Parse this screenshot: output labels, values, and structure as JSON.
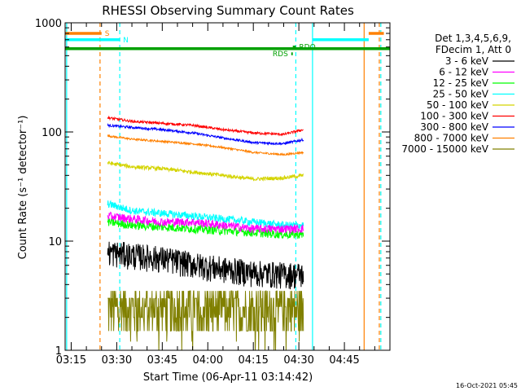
{
  "chart_data": {
    "type": "line",
    "title": "RHESSI Observing Summary Count Rates",
    "xlabel": "Start Time (06-Apr-11 03:14:42)",
    "ylabel": "Count Rate (s⁻¹ detector⁻¹)",
    "x_ticks": [
      "03:15",
      "03:30",
      "03:45",
      "04:00",
      "04:15",
      "04:30",
      "04:45"
    ],
    "x_tick_minutes": [
      15,
      30,
      45,
      60,
      75,
      90,
      105
    ],
    "xlim_minutes": [
      13,
      120
    ],
    "y_scale": "log",
    "ylim": [
      1,
      1000
    ],
    "y_ticks": [
      "1",
      "10",
      "100",
      "1000"
    ],
    "y_tick_values": [
      1,
      10,
      100,
      1000
    ],
    "timestamp": "16-Oct-2021 05:45",
    "legend": {
      "header": [
        "Det 1,3,4,5,6,9,",
        "FDecim 1, Att 0"
      ],
      "placement": "right-outside"
    },
    "series": [
      {
        "name": "3 - 6 keV",
        "color": "#000000",
        "noise": 0.28,
        "x": [
          27,
          35,
          45,
          55,
          65,
          75,
          85,
          91.5
        ],
        "y": [
          8,
          7.5,
          7,
          6.2,
          5.6,
          5.2,
          5,
          5
        ]
      },
      {
        "name": "6 - 12 keV",
        "color": "#ff00ff",
        "noise": 0.09,
        "x": [
          27,
          35,
          45,
          55,
          65,
          75,
          85,
          91.5
        ],
        "y": [
          17,
          16,
          15,
          15,
          14,
          13,
          13,
          13
        ]
      },
      {
        "name": "12 - 25 keV",
        "color": "#00ff00",
        "noise": 0.09,
        "x": [
          27,
          35,
          45,
          55,
          65,
          75,
          85,
          91.5
        ],
        "y": [
          15,
          14,
          13.5,
          13,
          12.5,
          12,
          11.5,
          11.5
        ]
      },
      {
        "name": "25 - 50 keV",
        "color": "#00ffff",
        "noise": 0.08,
        "x": [
          27,
          35,
          45,
          55,
          65,
          75,
          85,
          91.5
        ],
        "y": [
          22,
          19,
          18,
          17,
          16,
          15,
          14,
          14
        ]
      },
      {
        "name": "50 - 100 keV",
        "color": "#d4d400",
        "noise": 0.04,
        "x": [
          27,
          35,
          45,
          55,
          65,
          75,
          85,
          91.5
        ],
        "y": [
          52,
          48,
          46,
          43,
          40,
          37,
          38,
          40
        ]
      },
      {
        "name": "100 - 300 keV",
        "color": "#ff0000",
        "noise": 0.025,
        "x": [
          27,
          35,
          45,
          55,
          65,
          75,
          85,
          91.5
        ],
        "y": [
          135,
          125,
          120,
          115,
          105,
          98,
          95,
          105
        ]
      },
      {
        "name": "300 - 800 keV",
        "color": "#0000ff",
        "noise": 0.025,
        "x": [
          27,
          35,
          45,
          55,
          65,
          75,
          85,
          91.5
        ],
        "y": [
          115,
          110,
          105,
          98,
          88,
          80,
          78,
          85
        ]
      },
      {
        "name": "800 - 7000 keV",
        "color": "#ff8000",
        "noise": 0.02,
        "x": [
          27,
          35,
          45,
          55,
          65,
          75,
          85,
          91.5
        ],
        "y": [
          92,
          86,
          82,
          78,
          72,
          65,
          62,
          65
        ]
      },
      {
        "name": "7000 - 15000 keV",
        "color": "#808000",
        "noise": 0.5,
        "x": [
          27,
          35,
          45,
          55,
          65,
          75,
          85,
          91.5
        ],
        "y": [
          2,
          2,
          2,
          2,
          2,
          2,
          2,
          2
        ]
      }
    ],
    "flag_bars": [
      {
        "label": "S",
        "color": "#ff8000",
        "x": [
          13,
          25
        ],
        "y": 800
      },
      {
        "label": "N",
        "color": "#00ffff",
        "x": [
          13,
          31
        ],
        "y": 700
      },
      {
        "label": "",
        "color": "#00a000",
        "x": [
          13,
          120
        ],
        "y": 580
      },
      {
        "label": "RDO",
        "color": "#00a000",
        "x": [
          88,
          89
        ],
        "y": 600
      },
      {
        "label": "RDS",
        "color": "#00a000",
        "x": [
          87.5,
          88
        ],
        "y": 520
      },
      {
        "label": "",
        "color": "#00ffff",
        "x": [
          94.5,
          113
        ],
        "y": 700
      },
      {
        "label": "",
        "color": "#ff8000",
        "x": [
          113,
          118
        ],
        "y": 800
      }
    ],
    "vlines": [
      {
        "x": 13.5,
        "color": "#00ffff",
        "dashed": false
      },
      {
        "x": 24.5,
        "color": "#ff8000",
        "dashed": true
      },
      {
        "x": 31,
        "color": "#00ffff",
        "dashed": true
      },
      {
        "x": 89,
        "color": "#00ffff",
        "dashed": true
      },
      {
        "x": 94.5,
        "color": "#00ffff",
        "dashed": false
      },
      {
        "x": 111.5,
        "color": "#ff8000",
        "dashed": false
      },
      {
        "x": 116.5,
        "color": "#ff8000",
        "dashed": true
      },
      {
        "x": 117,
        "color": "#00ffff",
        "dashed": true
      }
    ]
  }
}
